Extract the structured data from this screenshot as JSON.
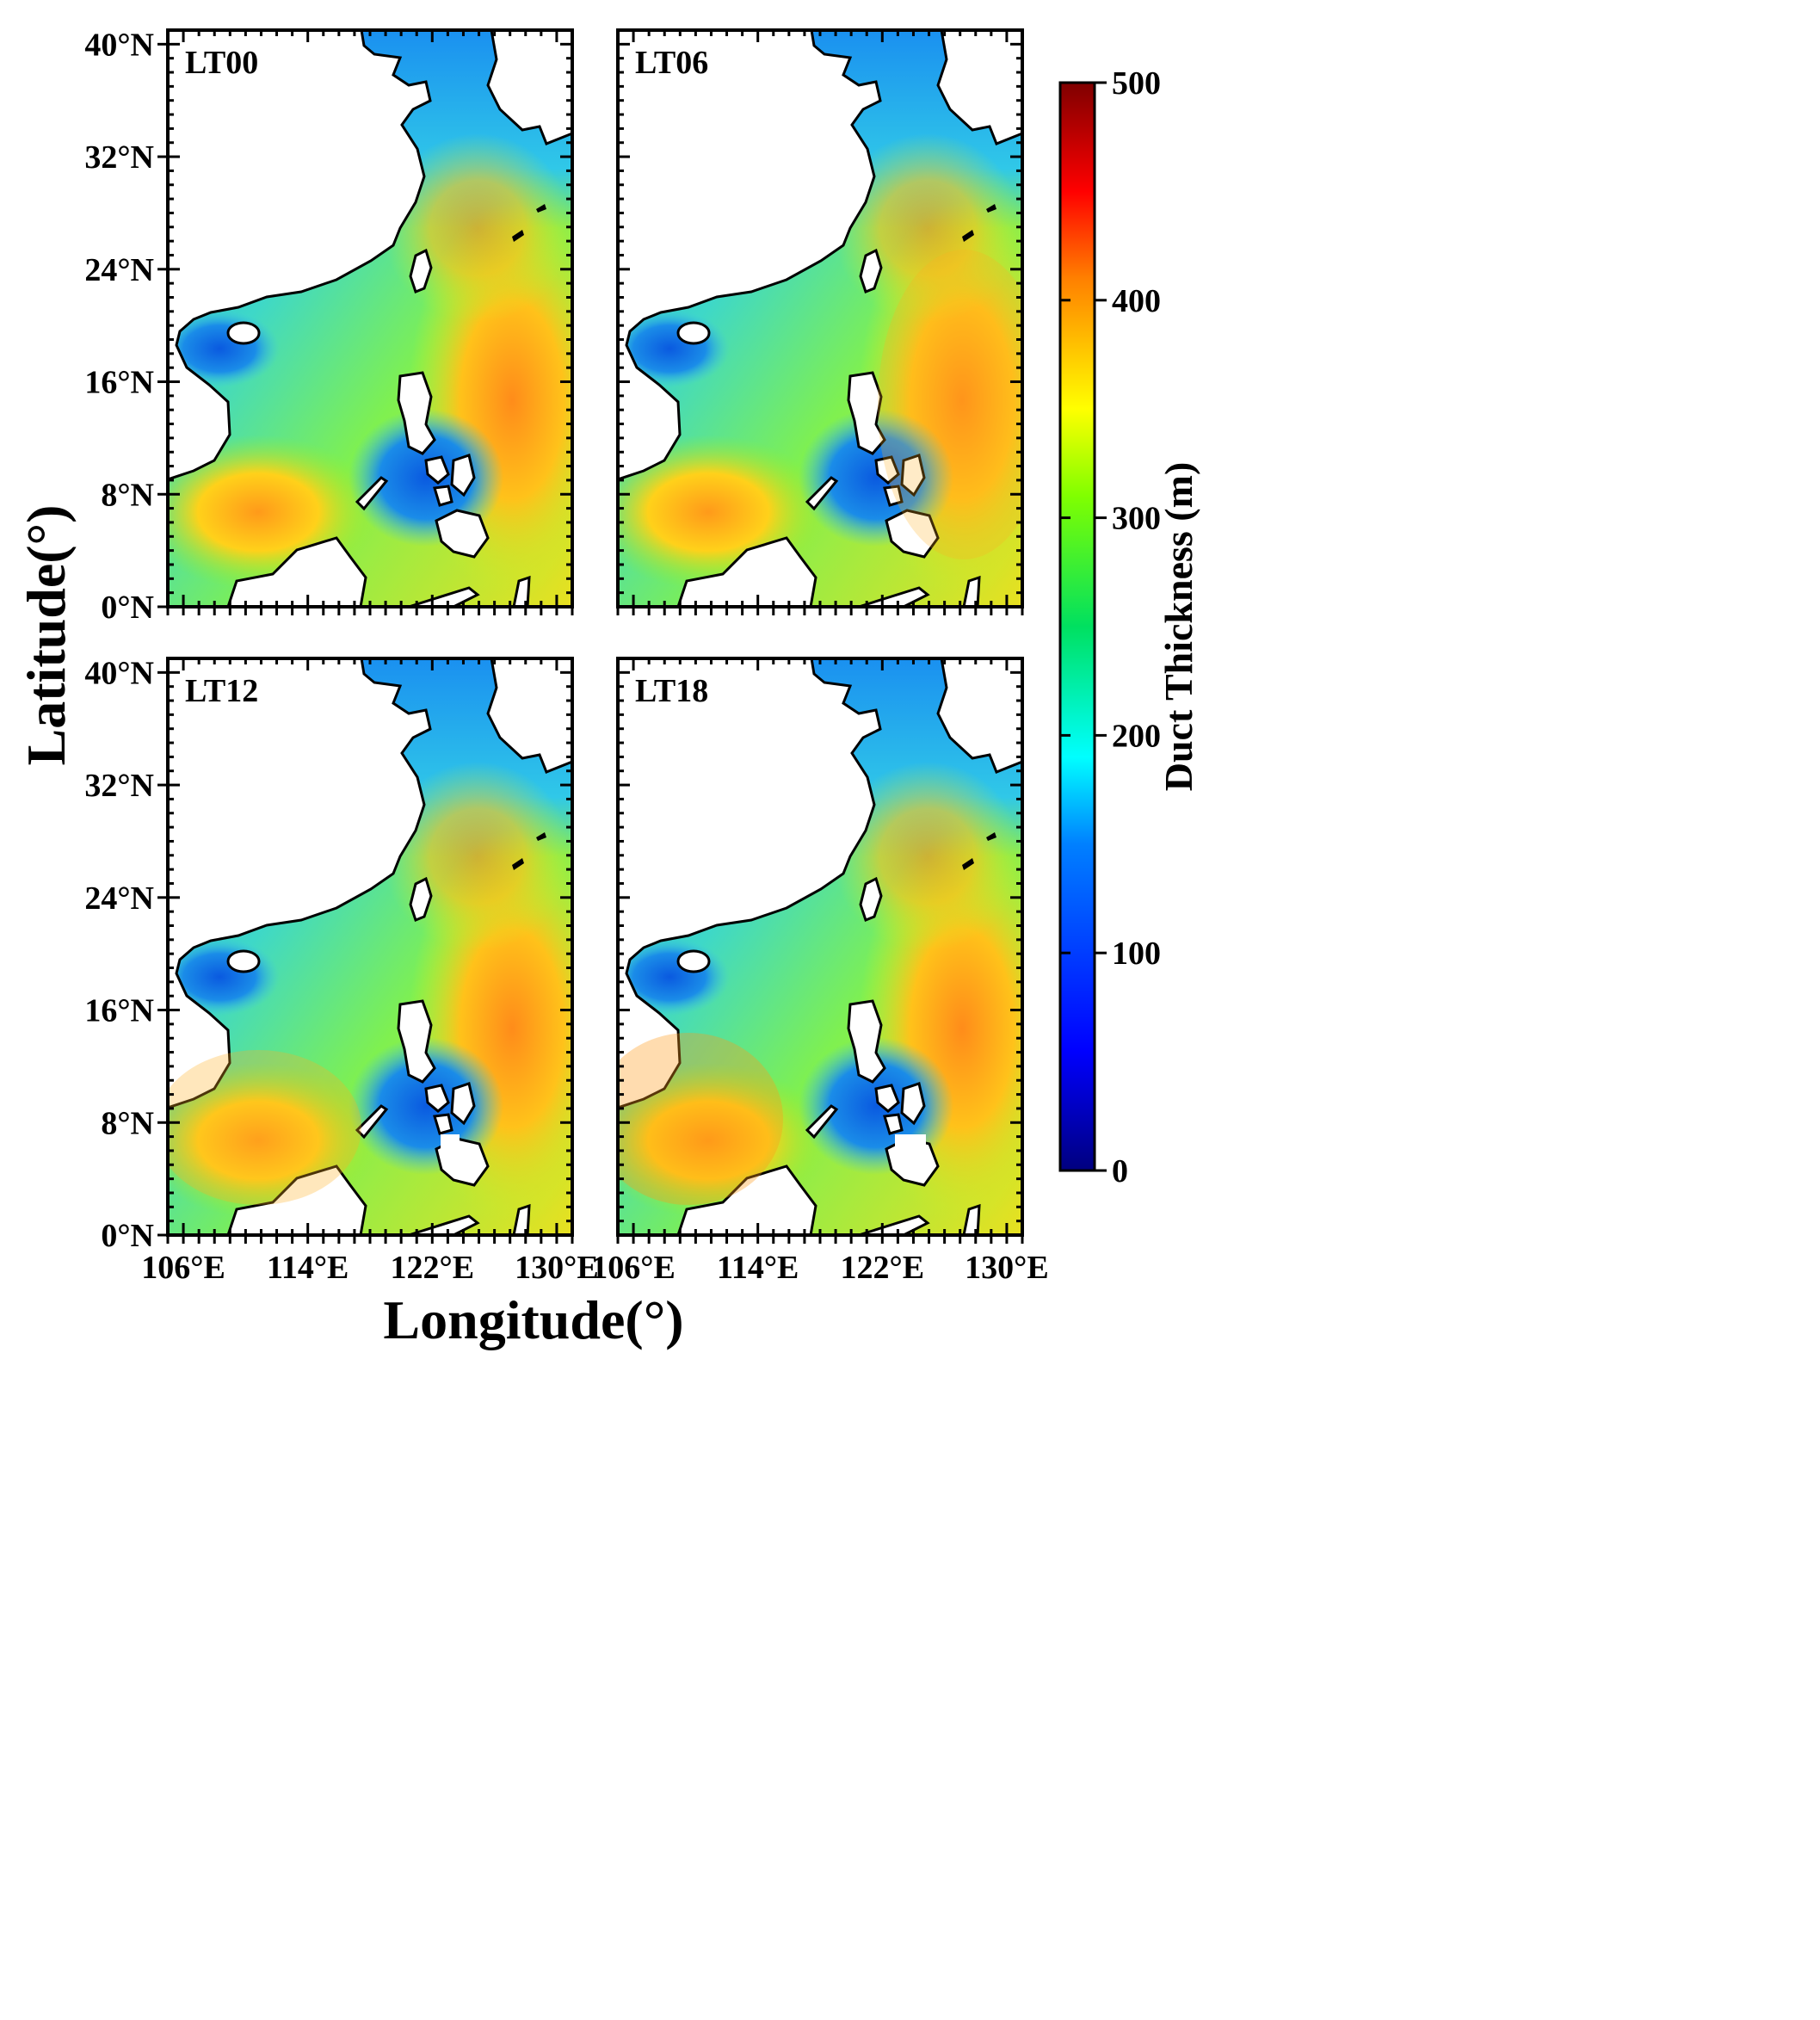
{
  "figure": {
    "x_axis_label": "Longitude(°)",
    "y_axis_label": "Latitude(°)",
    "latitude_ticks": [
      "40°N",
      "32°N",
      "24°N",
      "16°N",
      "8°N",
      "0°N"
    ],
    "longitude_ticks": [
      "106°E",
      "114°E",
      "122°E",
      "130°E"
    ]
  },
  "panels": [
    {
      "label": "LT00"
    },
    {
      "label": "LT06"
    },
    {
      "label": "LT12"
    },
    {
      "label": "LT18"
    }
  ],
  "colorbar": {
    "title": "Duct  Thickness (m)",
    "ticks": [
      "500",
      "400",
      "300",
      "200",
      "100",
      "0"
    ],
    "colors": [
      "#00007f",
      "#0000ff",
      "#0080ff",
      "#00ffff",
      "#00e060",
      "#80ff00",
      "#ffff00",
      "#ff8000",
      "#ff0000",
      "#7f0000"
    ]
  },
  "colors": {
    "ocean_low": "#1a7fe6",
    "land": "#ffffff",
    "coast": "#000000"
  }
}
